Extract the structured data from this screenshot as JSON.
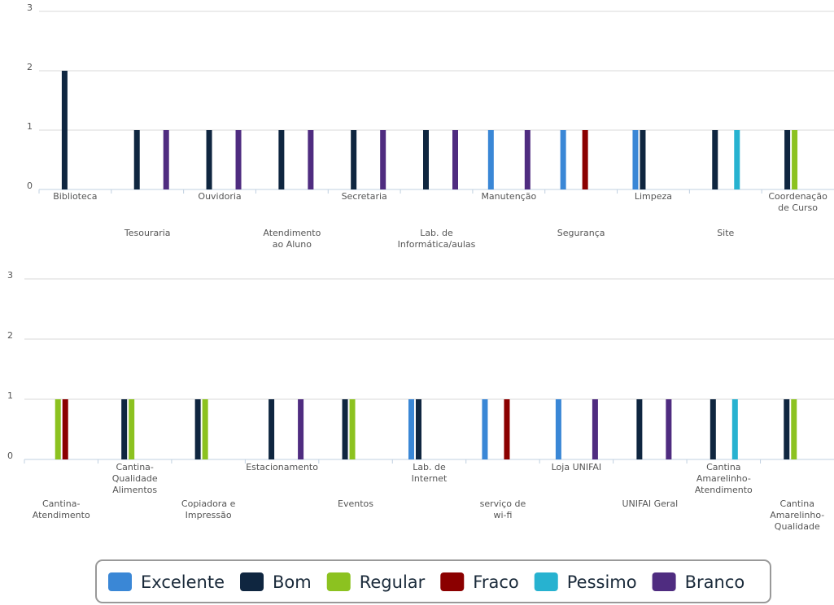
{
  "chart_data": [
    {
      "type": "bar",
      "categories": [
        "Biblioteca",
        "Tesouraria",
        "Ouvidoria",
        "Atendimento ao Aluno",
        "Secretaria",
        "Lab. de Informática/aulas",
        "Manutenção",
        "Segurança",
        "Limpeza",
        "Site",
        "Coordenação de Curso"
      ],
      "series": [
        {
          "name": "Excelente",
          "color": "#3a87d6",
          "values": [
            0,
            0,
            0,
            0,
            0,
            0,
            1,
            1,
            1,
            0,
            0
          ]
        },
        {
          "name": "Bom",
          "color": "#0f2640",
          "values": [
            2,
            1,
            1,
            1,
            1,
            1,
            0,
            0,
            1,
            1,
            1
          ]
        },
        {
          "name": "Regular",
          "color": "#8cc220",
          "values": [
            0,
            0,
            0,
            0,
            0,
            0,
            0,
            0,
            0,
            0,
            1
          ]
        },
        {
          "name": "Fraco",
          "color": "#8b0000",
          "values": [
            0,
            0,
            0,
            0,
            0,
            0,
            0,
            1,
            0,
            0,
            0
          ]
        },
        {
          "name": "Pessimo",
          "color": "#27b2d0",
          "values": [
            0,
            0,
            0,
            0,
            0,
            0,
            0,
            0,
            0,
            1,
            0
          ]
        },
        {
          "name": "Branco",
          "color": "#4f2c80",
          "values": [
            0,
            1,
            1,
            1,
            1,
            1,
            1,
            0,
            0,
            0,
            0
          ]
        }
      ],
      "ylim": [
        0,
        3
      ],
      "yticks": [
        0,
        1,
        2,
        3
      ],
      "grid": true
    },
    {
      "type": "bar",
      "categories": [
        "Cantina-Atendimento",
        "Cantina-Qualidade Alimentos",
        "Copiadora e Impressão",
        "Estacionamento",
        "Eventos",
        "Lab. de Internet",
        "serviço de wi-fi",
        "Loja UNIFAI",
        "UNIFAI Geral",
        "Cantina Amarelinho-Atendimento",
        "Cantina Amarelinho-Qualidade"
      ],
      "series": [
        {
          "name": "Excelente",
          "color": "#3a87d6",
          "values": [
            0,
            0,
            0,
            0,
            0,
            1,
            1,
            1,
            0,
            0,
            0
          ]
        },
        {
          "name": "Bom",
          "color": "#0f2640",
          "values": [
            0,
            1,
            1,
            1,
            1,
            1,
            0,
            0,
            1,
            1,
            1
          ]
        },
        {
          "name": "Regular",
          "color": "#8cc220",
          "values": [
            1,
            1,
            1,
            0,
            1,
            0,
            0,
            0,
            0,
            0,
            1
          ]
        },
        {
          "name": "Fraco",
          "color": "#8b0000",
          "values": [
            1,
            0,
            0,
            0,
            0,
            0,
            1,
            0,
            0,
            0,
            0
          ]
        },
        {
          "name": "Pessimo",
          "color": "#27b2d0",
          "values": [
            0,
            0,
            0,
            0,
            0,
            0,
            0,
            0,
            0,
            1,
            0
          ]
        },
        {
          "name": "Branco",
          "color": "#4f2c80",
          "values": [
            0,
            0,
            0,
            1,
            0,
            0,
            0,
            1,
            1,
            0,
            0
          ]
        }
      ],
      "ylim": [
        0,
        3
      ],
      "yticks": [
        0,
        1,
        2,
        3
      ],
      "grid": true
    }
  ]
}
